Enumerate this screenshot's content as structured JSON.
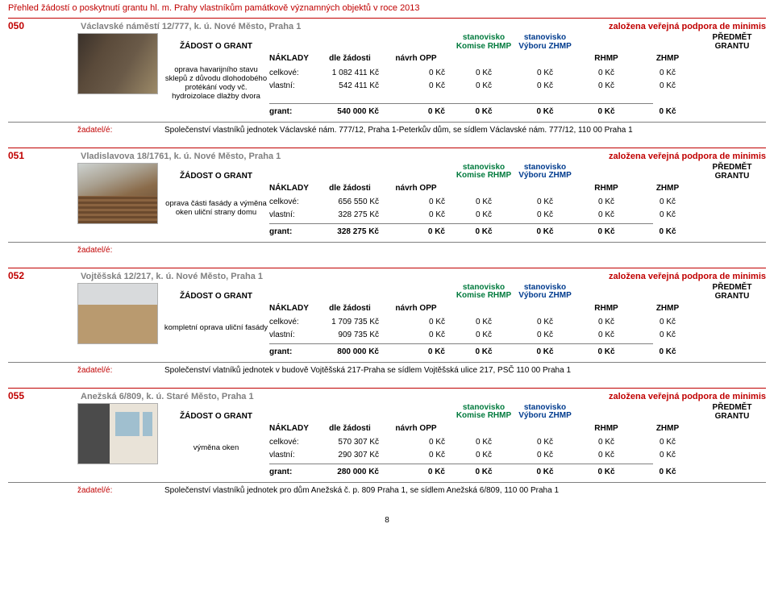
{
  "doc_title": "Přehled žádostí o poskytnutí grantu hl. m. Prahy vlastníkům památkově významných objektů v roce 2013",
  "header_notes": {
    "zalozena": "založena veřejná podpora de minimis"
  },
  "cols": {
    "zadost": "ŽÁDOST O GRANT",
    "naklady": "NÁKLADY",
    "dle": "dle žádosti",
    "navrh": "návrh OPP",
    "stan_komise_l1": "stanovisko",
    "stan_komise_l2": "Komise RHMP",
    "stan_vyboru_l1": "stanovisko",
    "stan_vyboru_l2": "Výboru ZHMP",
    "rhmp": "RHMP",
    "zhmp": "ZHMP",
    "predmet": "PŘEDMĚT GRANTU",
    "celkove": "celkové:",
    "vlastni": "vlastní:",
    "grant": "grant:",
    "zero": "0 Kč",
    "applicant": "žadatel/é:"
  },
  "records": [
    {
      "num": "050",
      "addr": "Václavské náměstí 12/777, k. ú. Nové Město, Praha 1",
      "photo": "p1",
      "desc": "oprava havarijního stavu sklepů z důvodu dlohodobého protékání vody vč. hydroizolace dlažby dvora",
      "celkove": "1 082 411 Kč",
      "vlastni": "542 411 Kč",
      "grant": "540 000 Kč",
      "applicant": "Společenství vlastníků jednotek Václavské nám. 777/12, Praha 1-Peterkův dům, se sídlem Václavské nám. 777/12, 110 00 Praha 1"
    },
    {
      "num": "051",
      "addr": "Vladislavova 18/1761, k. ú. Nové Město, Praha 1",
      "photo": "p2",
      "desc": "oprava části fasády a výměna oken uliční strany domu",
      "celkove": "656 550 Kč",
      "vlastni": "328 275 Kč",
      "grant": "328 275 Kč",
      "applicant": ""
    },
    {
      "num": "052",
      "addr": "Vojtěšská 12/217, k. ú. Nové Město, Praha 1",
      "photo": "p3",
      "desc": "kompletní oprava uliční fasády",
      "celkove": "1 709 735 Kč",
      "vlastni": "909 735 Kč",
      "grant": "800 000 Kč",
      "applicant": "Společenství vlatníků jednotek v budově Vojtěšská 217-Praha se sídlem Vojtěšská ulice 217, PSČ 110 00 Praha 1"
    },
    {
      "num": "055",
      "addr": "Anežská 6/809, k. ú. Staré Město, Praha 1",
      "photo": "p4",
      "desc": "výměna oken",
      "celkove": "570 307 Kč",
      "vlastni": "290 307 Kč",
      "grant": "280 000 Kč",
      "applicant": "Společenství vlastníků jednotek pro dům Anežská č. p. 809 Praha 1, se sídlem Anežská 6/809, 110 00 Praha 1"
    }
  ],
  "page_number": "8"
}
